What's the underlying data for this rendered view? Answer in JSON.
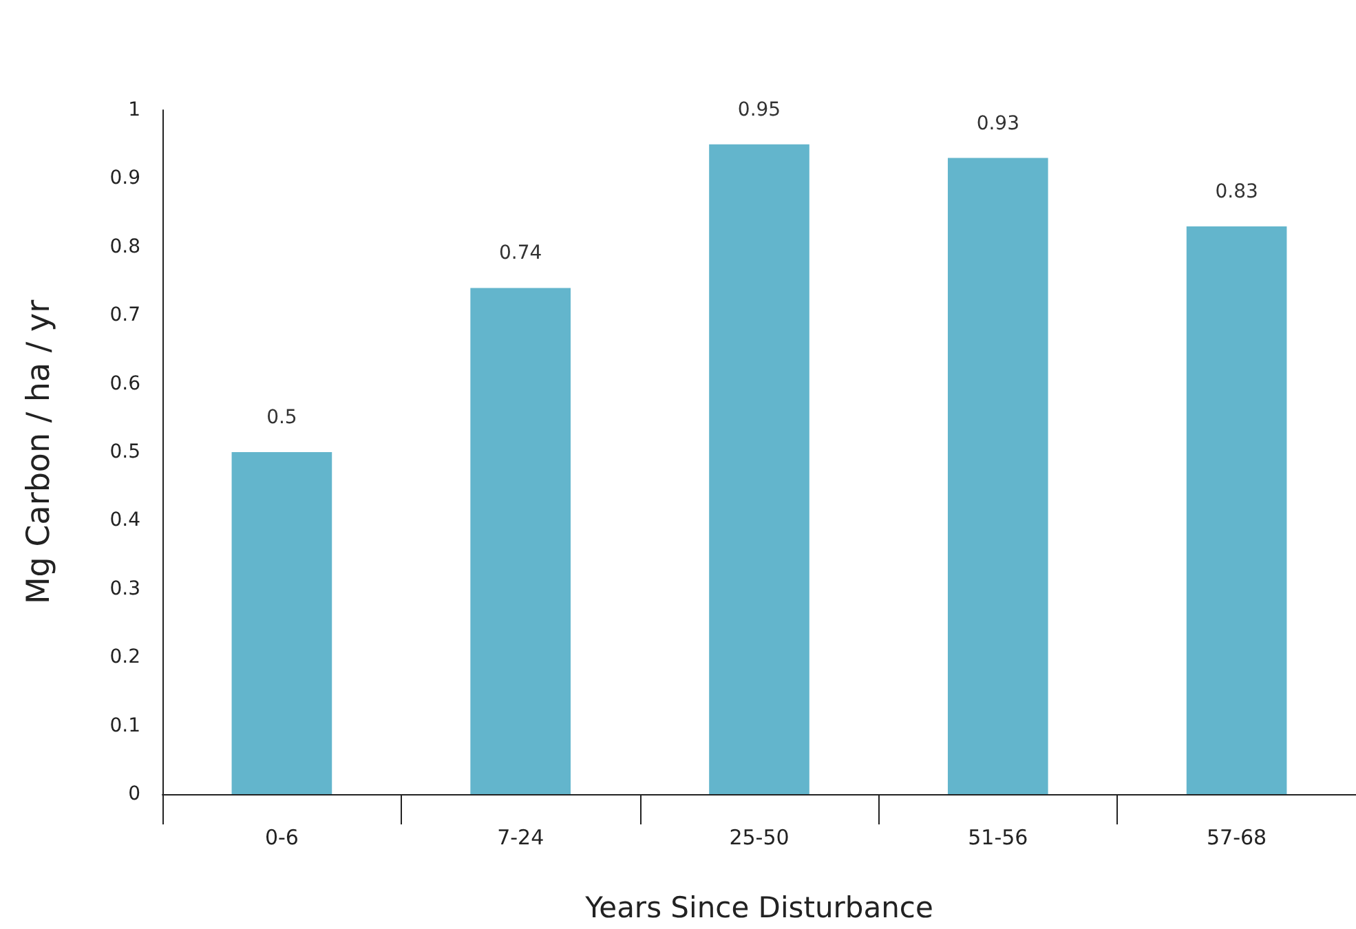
{
  "chart_data": {
    "type": "bar",
    "xlabel": "Years Since Disturbance",
    "ylabel": "Mg Carbon / ha / yr",
    "categories": [
      "0-6",
      "7-24",
      "25-50",
      "51-56",
      "57-68"
    ],
    "values": [
      0.5,
      0.74,
      0.95,
      0.93,
      0.83
    ],
    "color": "#63b5cc",
    "ylim": [
      0,
      1
    ],
    "yticks": [
      0,
      0.1,
      0.2,
      0.3,
      0.4,
      0.5,
      0.6,
      0.7,
      0.8,
      0.9,
      1
    ],
    "data_labels": true,
    "grid": false
  }
}
